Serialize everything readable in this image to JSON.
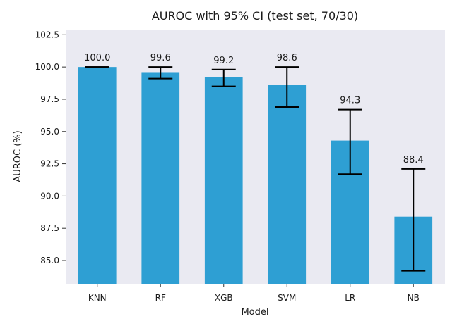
{
  "chart_data": {
    "type": "bar",
    "title": "AUROC with 95% CI (test set, 70/30)",
    "xlabel": "Model",
    "ylabel": "AUROC (%)",
    "categories": [
      "KNN",
      "RF",
      "XGB",
      "SVM",
      "LR",
      "NB"
    ],
    "values": [
      100.0,
      99.6,
      99.2,
      98.6,
      94.3,
      88.4
    ],
    "value_labels": [
      "100.0",
      "99.6",
      "99.2",
      "98.6",
      "94.3",
      "88.4"
    ],
    "ci_lower": [
      100.0,
      99.1,
      98.5,
      96.9,
      91.7,
      84.2
    ],
    "ci_upper": [
      100.0,
      100.0,
      99.8,
      100.0,
      96.7,
      92.1
    ],
    "ylim": [
      83.2,
      102.9
    ],
    "yticks": [
      85.0,
      87.5,
      90.0,
      92.5,
      95.0,
      97.5,
      100.0,
      102.5
    ],
    "ytick_labels": [
      "85.0",
      "87.5",
      "90.0",
      "92.5",
      "95.0",
      "97.5",
      "100.0",
      "102.5"
    ],
    "grid": false,
    "legend": "none",
    "colors": {
      "bar": "#2e9fd3",
      "plot_background": "#eaeaf2",
      "error_bar": "#000000",
      "text": "#1a1a1a"
    }
  }
}
